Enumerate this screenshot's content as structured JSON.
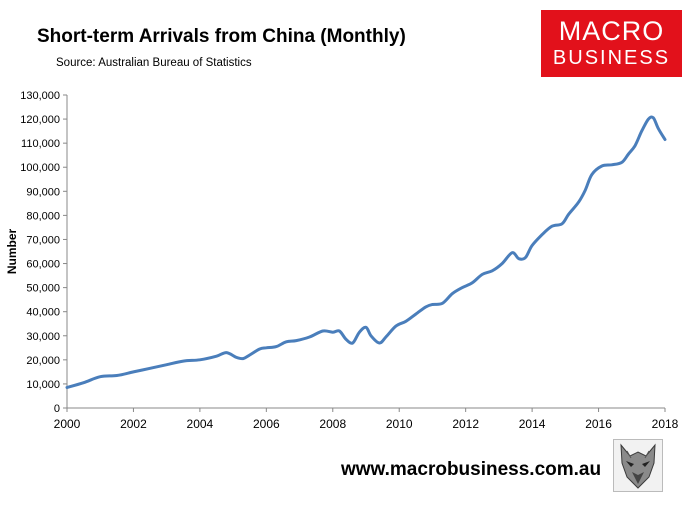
{
  "header": {
    "title": "Short-term Arrivals from China (Monthly)",
    "source": "Source: Australian Bureau of Statistics"
  },
  "logo": {
    "line1": "MACRO",
    "line2": "BUSINESS",
    "color": "#e2111b"
  },
  "footer": {
    "website": "www.macrobusiness.com.au",
    "mascot_icon": "wolf-head-icon"
  },
  "colors": {
    "series": "#4a7ebb",
    "axis": "#888888"
  },
  "chart_data": {
    "type": "line",
    "title": "Short-term Arrivals from China (Monthly)",
    "subtitle": "Source: Australian Bureau of Statistics",
    "xlabel": "",
    "ylabel": "Number",
    "xlim": [
      2000,
      2018
    ],
    "ylim": [
      0,
      130000
    ],
    "x_ticks": [
      "2000",
      "2002",
      "2004",
      "2006",
      "2008",
      "2010",
      "2012",
      "2014",
      "2016",
      "2018"
    ],
    "y_ticks": [
      "0",
      "10,000",
      "20,000",
      "30,000",
      "40,000",
      "50,000",
      "60,000",
      "70,000",
      "80,000",
      "90,000",
      "100,000",
      "110,000",
      "120,000",
      "130,000"
    ],
    "grid": false,
    "legend": "none",
    "series": [
      {
        "color": "#4a7ebb",
        "x": [
          2000.0,
          2000.5,
          2001.0,
          2001.5,
          2002.0,
          2002.5,
          2003.0,
          2003.5,
          2004.0,
          2004.5,
          2004.8,
          2005.1,
          2005.3,
          2005.5,
          2005.8,
          2006.0,
          2006.3,
          2006.6,
          2006.9,
          2007.3,
          2007.7,
          2008.0,
          2008.2,
          2008.4,
          2008.6,
          2008.8,
          2009.0,
          2009.15,
          2009.4,
          2009.6,
          2009.9,
          2010.2,
          2010.5,
          2010.8,
          2011.0,
          2011.3,
          2011.6,
          2011.9,
          2012.2,
          2012.5,
          2012.8,
          2013.1,
          2013.4,
          2013.6,
          2013.8,
          2014.0,
          2014.3,
          2014.6,
          2014.9,
          2015.1,
          2015.4,
          2015.6,
          2015.8,
          2016.1,
          2016.4,
          2016.7,
          2016.9,
          2017.1,
          2017.3,
          2017.5,
          2017.65,
          2017.8,
          2018.0
        ],
        "y": [
          8500,
          10500,
          13000,
          13500,
          15000,
          16500,
          18000,
          19500,
          20000,
          21500,
          23000,
          21000,
          20500,
          22000,
          24500,
          25000,
          25500,
          27500,
          28000,
          29500,
          32000,
          31500,
          32000,
          28500,
          27000,
          31500,
          33500,
          30000,
          27000,
          29500,
          34000,
          36000,
          39000,
          42000,
          43000,
          43500,
          47500,
          50000,
          52000,
          55500,
          57000,
          60000,
          64500,
          62000,
          62500,
          67500,
          72000,
          75500,
          76500,
          80500,
          85500,
          90500,
          97000,
          100500,
          101000,
          102000,
          105500,
          109000,
          115000,
          120000,
          120500,
          116000,
          111500
        ]
      }
    ]
  }
}
